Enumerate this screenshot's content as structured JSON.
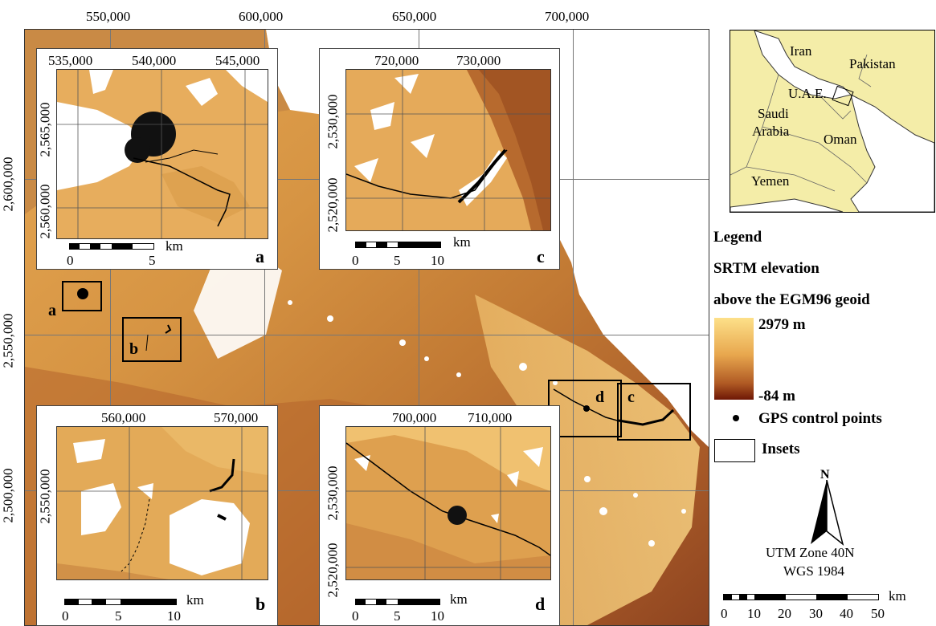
{
  "main_map": {
    "top_ticks": [
      "550,000",
      "600,000",
      "650,000",
      "700,000"
    ],
    "left_ticks": [
      "2,600,000",
      "2,550,000",
      "2,500,000"
    ],
    "box_labels": [
      "a",
      "b",
      "d",
      "c"
    ]
  },
  "insets": {
    "a": {
      "letter": "a",
      "top_ticks": [
        "535,000",
        "540,000",
        "545,000"
      ],
      "left_ticks": [
        "2,565,000",
        "2,560,000"
      ],
      "scale_labels": [
        "0",
        "5"
      ],
      "scale_unit": "km"
    },
    "c": {
      "letter": "c",
      "top_ticks": [
        "720,000",
        "730,000"
      ],
      "left_ticks": [
        "2,530,000",
        "2,520,000"
      ],
      "scale_labels": [
        "0",
        "5",
        "10"
      ],
      "scale_unit": "km"
    },
    "b": {
      "letter": "b",
      "top_ticks": [
        "560,000",
        "570,000"
      ],
      "left_ticks": [
        "2,550,000"
      ],
      "scale_labels": [
        "0",
        "5",
        "10"
      ],
      "scale_unit": "km"
    },
    "d": {
      "letter": "d",
      "top_ticks": [
        "700,000",
        "710,000"
      ],
      "left_ticks": [
        "2,530,000",
        "2,520,000"
      ],
      "scale_labels": [
        "0",
        "5",
        "10"
      ],
      "scale_unit": "km"
    }
  },
  "locator": {
    "labels": [
      "Iran",
      "Pakistan",
      "U.A.E.",
      "Saudi",
      "Arabia",
      "Oman",
      "Yemen"
    ]
  },
  "legend": {
    "title": "Legend",
    "raster_title_1": "SRTM elevation",
    "raster_title_2": "above the EGM96 geoid",
    "max_label": "2979 m",
    "min_label": "-84 m",
    "gps_label": "GPS control points",
    "insets_label": "Insets"
  },
  "north_arrow": {
    "label": "N"
  },
  "projection": {
    "line1": "UTM Zone 40N",
    "line2": "WGS 1984"
  },
  "main_scale": {
    "unit": "km",
    "labels": [
      "0",
      "10",
      "20",
      "30",
      "40",
      "50"
    ]
  },
  "colors": {
    "elev_high": "#fde089",
    "elev_mid": "#d99a3f",
    "elev_low": "#6e1705",
    "gps": "#000000"
  }
}
